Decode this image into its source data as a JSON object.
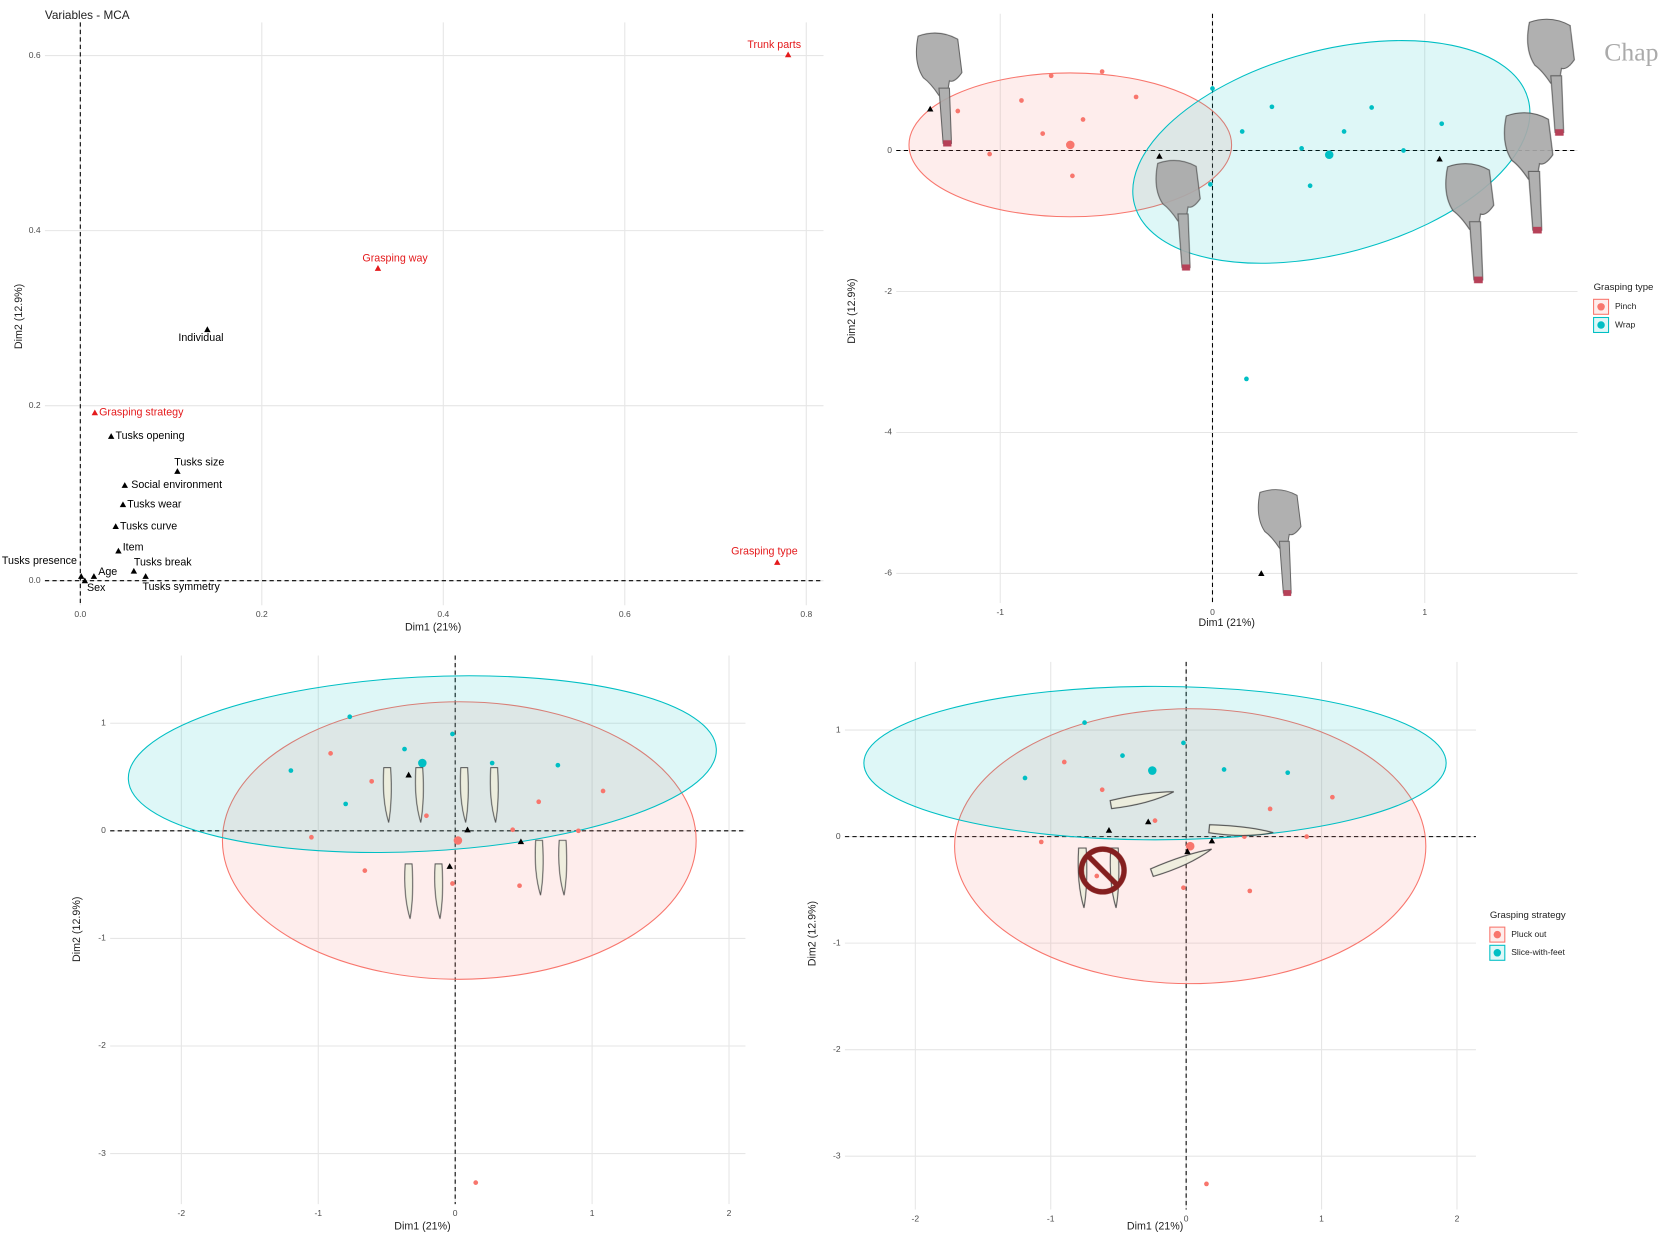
{
  "page_text": "Chap",
  "chart_data": [
    {
      "type": "scatter",
      "title": "Variables - MCA",
      "x_label": "Dim1 (21%)",
      "y_label": "Dim2 (12.9%)",
      "xlim": [
        -0.039,
        0.819
      ],
      "ylim": [
        -0.028,
        0.638
      ],
      "xticks": [
        {
          "value": 0,
          "label": "0.0"
        },
        0.2,
        0.4,
        0.6,
        0.8
      ],
      "yticks": [
        {
          "value": 0,
          "label": "0.0"
        },
        0.2,
        0.4,
        0.6
      ],
      "grid": true,
      "labels": [
        "Trunk parts",
        "Grasping way",
        "Individual",
        "Grasping strategy",
        "Tusks opening",
        "Tusks size",
        "Social environment",
        "Tusks wear",
        "Tusks curve",
        "Item",
        "Tusks presence",
        "Tusks break",
        "Age",
        "Sex",
        "Tusks symmetry",
        "Grasping type"
      ],
      "x": [
        0.78,
        0.328,
        0.14,
        0.016,
        0.034,
        0.107,
        0.049,
        0.047,
        0.039,
        0.042,
        0.001,
        0.059,
        0.015,
        0.005,
        0.072,
        0.768
      ],
      "values": [
        0.601,
        0.357,
        0.287,
        0.192,
        0.165,
        0.125,
        0.109,
        0.087,
        0.062,
        0.034,
        0.005,
        0.011,
        0.005,
        0.0,
        0.005,
        0.021
      ],
      "colors": [
        "#e41a1c",
        "#e41a1c",
        "#000000",
        "#e41a1c",
        "#000000",
        "#000000",
        "#000000",
        "#000000",
        "#000000",
        "#000000",
        "#000000",
        "#000000",
        "#000000",
        "#000000",
        "#000000",
        "#e41a1c"
      ]
    },
    {
      "type": "scatter",
      "x_label": "Dim1 (21%)",
      "y_label": "Dim2 (12.9%)",
      "xlim": [
        -1.49,
        1.72
      ],
      "ylim": [
        -6.42,
        1.94
      ],
      "xticks": [
        -1,
        0,
        1
      ],
      "yticks": [
        0,
        -2,
        -4,
        -6
      ],
      "grid": true,
      "legend_title": "Grasping type",
      "series": [
        {
          "name": "Pinch",
          "color": "#F8766D",
          "x": [
            -1.2,
            -0.9,
            -0.76,
            -0.52,
            -0.61,
            -0.36,
            -0.8,
            -1.05,
            -0.66
          ],
          "values": [
            0.56,
            0.71,
            1.06,
            1.12,
            0.44,
            0.76,
            0.24,
            -0.05,
            -0.36
          ],
          "centroid": [
            -0.67,
            0.08
          ],
          "ellipse": {
            "cx": -0.67,
            "cy": 0.08,
            "rx": 0.76,
            "ry": 1.02,
            "angle": 0
          }
        },
        {
          "name": "Wrap",
          "color": "#00BFC4",
          "x": [
            0,
            0.28,
            0.75,
            0.14,
            0.42,
            0.62,
            0.9,
            1.08,
            0.46,
            -0.01,
            0.16
          ],
          "values": [
            0.88,
            0.62,
            0.61,
            0.27,
            0.03,
            0.27,
            0,
            0.38,
            -0.5,
            -0.48,
            -3.24
          ],
          "centroid": [
            0.55,
            -0.06
          ],
          "ellipse": {
            "cx": 0.56,
            "cy": -0.02,
            "rx": 0.96,
            "ry": 1.44,
            "angle": -15
          }
        },
        {
          "color": "#000000",
          "marker": "triangle",
          "x": [
            -1.33,
            -0.25,
            1.07,
            0.23
          ],
          "values": [
            0.59,
            -0.08,
            -0.12,
            -6.0
          ]
        }
      ]
    },
    {
      "type": "scatter",
      "x_label": "Dim1 (21%)",
      "y_label": "Dim2 (12.9%)",
      "xlim": [
        -2.52,
        2.12
      ],
      "ylim": [
        -3.47,
        1.63
      ],
      "xticks": [
        -2,
        -1,
        0,
        1,
        2
      ],
      "yticks": [
        1,
        0,
        -1,
        -2,
        -3
      ],
      "grid": true,
      "series": [
        {
          "color": "#F8766D",
          "x": [
            -0.91,
            -0.61,
            -0.21,
            -1.05,
            -0.66,
            -0.02,
            0.42,
            0.61,
            0.47,
            0.9,
            1.08,
            0.15
          ],
          "values": [
            0.72,
            0.46,
            0.14,
            -0.06,
            -0.37,
            -0.49,
            0.01,
            0.27,
            -0.51,
            0,
            0.37,
            -3.27
          ],
          "centroid": [
            0.02,
            -0.09
          ],
          "ellipse": {
            "cx": 0.03,
            "cy": -0.09,
            "rx": 1.73,
            "ry": 1.29,
            "angle": 0
          }
        },
        {
          "color": "#00BFC4",
          "x": [
            -0.77,
            -1.2,
            -0.37,
            -0.8,
            -0.02,
            0.27,
            0.75
          ],
          "values": [
            1.06,
            0.56,
            0.76,
            0.25,
            0.9,
            0.63,
            0.61
          ],
          "centroid": [
            -0.24,
            0.63
          ],
          "ellipse": {
            "cx": -0.24,
            "cy": 0.62,
            "rx": 2.15,
            "ry": 0.81,
            "angle": -3
          }
        },
        {
          "color": "#000000",
          "marker": "triangle",
          "x": [
            -0.34,
            0.09,
            0.48,
            -0.04
          ],
          "values": [
            0.52,
            0.01,
            -0.1,
            -0.33
          ]
        }
      ]
    },
    {
      "type": "scatter",
      "x_label": "Dim1 (21%)",
      "y_label": "Dim2 (12.9%)",
      "xlim": [
        -2.52,
        2.14
      ],
      "ylim": [
        -3.5,
        1.64
      ],
      "xticks": [
        -2,
        -1,
        0,
        1,
        2
      ],
      "yticks": [
        1,
        0,
        -1,
        -2,
        -3
      ],
      "grid": true,
      "legend_title": "Grasping strategy",
      "series": [
        {
          "name": "Pluck out",
          "color": "#F8766D",
          "x": [
            -0.9,
            -0.62,
            -0.23,
            -1.07,
            -0.66,
            -0.02,
            0.62,
            0.47,
            0.89,
            1.08,
            0.15,
            0.43
          ],
          "values": [
            0.7,
            0.44,
            0.15,
            -0.05,
            -0.37,
            -0.48,
            0.26,
            -0.51,
            0,
            0.37,
            -3.26,
            0
          ],
          "centroid": [
            0.03,
            -0.09
          ],
          "ellipse": {
            "cx": 0.03,
            "cy": -0.09,
            "rx": 1.74,
            "ry": 1.29,
            "angle": 0
          }
        },
        {
          "name": "Slice-with-feet",
          "color": "#00BFC4",
          "x": [
            -0.75,
            -1.19,
            -0.47,
            -0.02,
            0.28,
            0.75
          ],
          "values": [
            1.07,
            0.55,
            0.76,
            0.88,
            0.63,
            0.6
          ],
          "centroid": [
            -0.25,
            0.62
          ],
          "ellipse": {
            "cx": -0.23,
            "cy": 0.69,
            "rx": 2.15,
            "ry": 0.72,
            "angle": 0
          }
        },
        {
          "color": "#000000",
          "marker": "triangle",
          "x": [
            -0.57,
            -0.28,
            0.19,
            0.01
          ],
          "values": [
            0.06,
            0.14,
            -0.04,
            -0.14
          ]
        }
      ]
    }
  ]
}
